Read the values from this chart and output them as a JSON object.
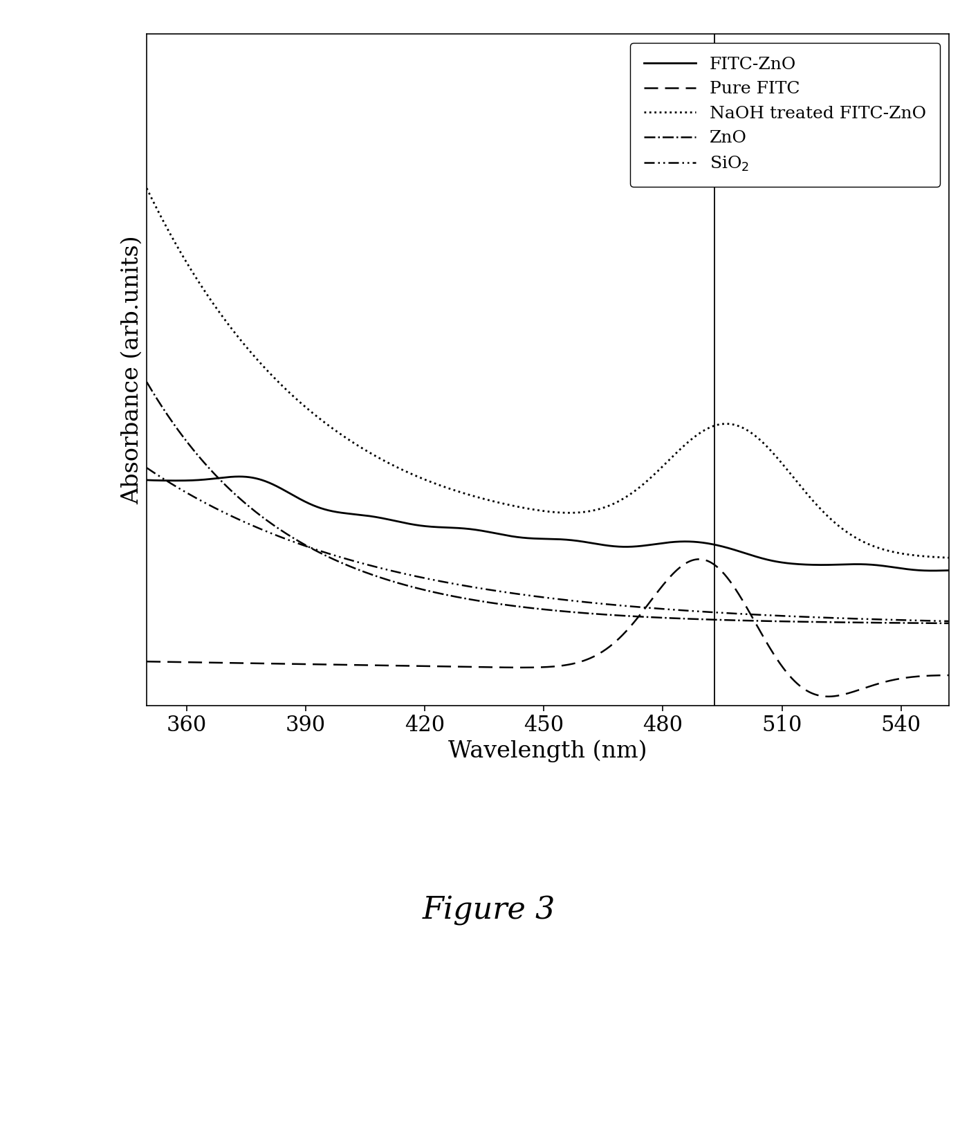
{
  "xlabel": "Wavelength (nm)",
  "ylabel": "Absorbance (arb.units)",
  "title": "Figure 3",
  "xlim": [
    350,
    552
  ],
  "xticks": [
    360,
    390,
    420,
    450,
    480,
    510,
    540
  ],
  "vertical_line_x": 493,
  "legend_labels": [
    "FITC-ZnO",
    "Pure FITC",
    "NaOH treated FITC-ZnO",
    "ZnO",
    "SiO$_2$"
  ],
  "background_color": "#ffffff",
  "axes_color": "#000000",
  "fig_caption_fontsize": 32,
  "axis_label_fontsize": 24,
  "tick_fontsize": 22,
  "legend_fontsize": 18
}
